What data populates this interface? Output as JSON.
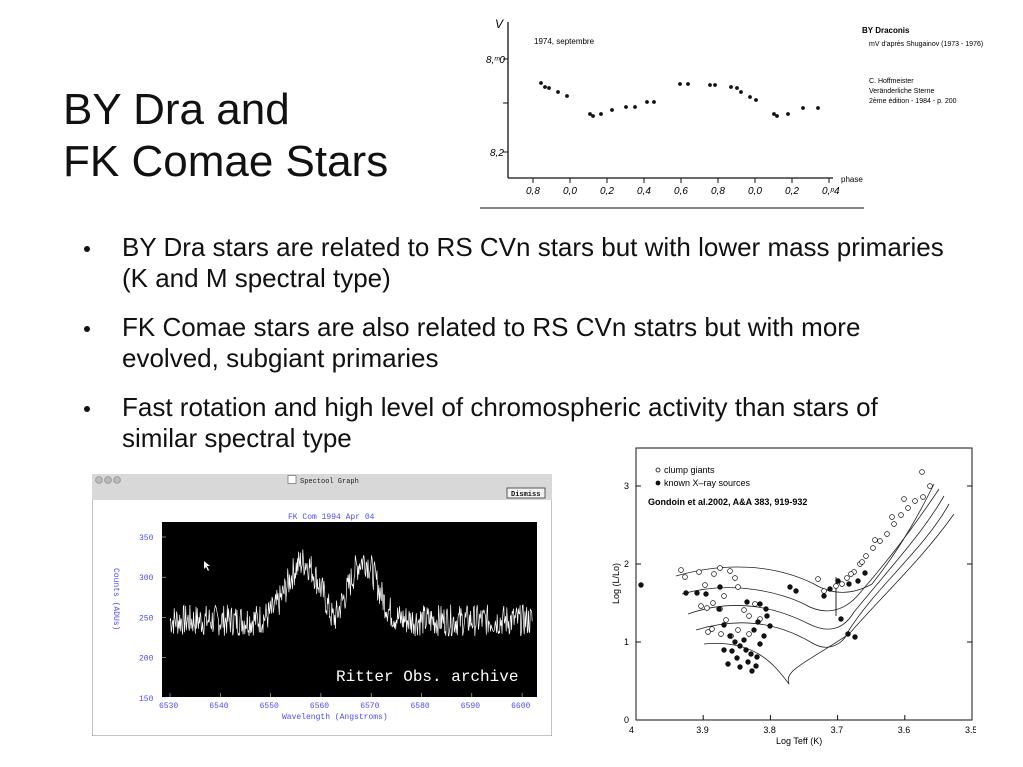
{
  "slide": {
    "title_line1": "BY Dra and",
    "title_line2": "FK Comae Stars",
    "bullets": [
      "BY Dra stars are related to RS CVn stars but with lower mass primaries (K and M spectral type)",
      "FK Comae stars are also related to RS CVn statrs but with more evolved, subgiant primaries",
      "Fast rotation and high level of chromospheric activity than stars of similar spectral type"
    ]
  },
  "lightcurve": {
    "date_label": "1974, septembre",
    "star_name": "BY Draconis",
    "source": "mV d'après Shugainov (1973 - 1976)",
    "credit_line1": "C. Hoffmeister",
    "credit_line2": "Veränderliche Sterne",
    "credit_line3": "2ème édition - 1984 - p. 200",
    "y_axis_label": "V",
    "y_ticks": [
      "8,ᵐ0",
      "8,2"
    ],
    "x_ticks": [
      "0,8",
      "0,0",
      "0,2",
      "0,4",
      "0,6",
      "0,8",
      "0,0",
      "0,2",
      "0,ᵖ4"
    ],
    "x_label": "phase"
  },
  "spectool": {
    "window_title": "Spectool Graph",
    "dismiss_label": "Dismiss",
    "plot_title": "FK Com 1994 Apr 04",
    "y_label": "Counts (ADUs)",
    "x_label": "Wavelength (Angstroms)",
    "y_ticks": [
      "350",
      "300",
      "250",
      "200",
      "150"
    ],
    "x_ticks": [
      "6530",
      "6540",
      "6550",
      "6560",
      "6570",
      "6580",
      "6590",
      "6600"
    ],
    "caption": "Ritter Obs. archive"
  },
  "hr_diagram": {
    "legend_clump": "clump giants",
    "legend_xray": "known X–ray sources",
    "citation": "Gondoin et al.2002,  A&A 383, 919-932",
    "y_label": "Log (L/Lo)",
    "x_label": "Log Teff (K)",
    "y_ticks": [
      "3",
      "2",
      "1",
      "0"
    ],
    "x_ticks": [
      "4",
      "3.9",
      "3.8",
      "3.7",
      "3.6",
      "3.5"
    ]
  }
}
